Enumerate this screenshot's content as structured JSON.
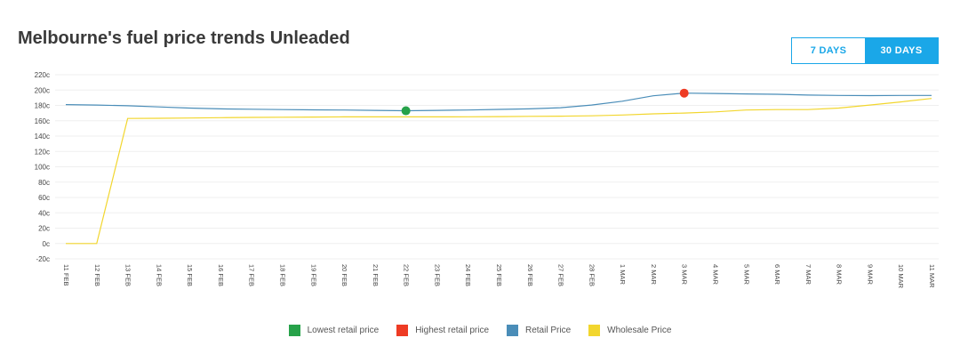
{
  "page": {
    "title": "Melbourne's fuel price trends Unleaded"
  },
  "toggle": {
    "seven_days": "7 DAYS",
    "thirty_days": "30 DAYS",
    "active": "30 DAYS"
  },
  "colors": {
    "retail": "#4a8db8",
    "wholesale": "#f2d62e",
    "lowest": "#27a24a",
    "highest": "#ee3b24",
    "accent": "#1aa7e8"
  },
  "legend": [
    {
      "label": "Lowest retail price",
      "color": "#27a24a"
    },
    {
      "label": "Highest retail price",
      "color": "#ee3b24"
    },
    {
      "label": "Retail Price",
      "color": "#4a8db8"
    },
    {
      "label": "Wholesale Price",
      "color": "#f2d62e"
    }
  ],
  "chart_data": {
    "type": "line",
    "title": "Melbourne's fuel price trends Unleaded",
    "xlabel": "",
    "ylabel": "",
    "ylim": [
      -20,
      220
    ],
    "yticks": [
      "-20c",
      "0c",
      "20c",
      "40c",
      "60c",
      "80c",
      "100c",
      "120c",
      "140c",
      "160c",
      "180c",
      "200c",
      "220c"
    ],
    "categories": [
      "11 FEB",
      "12 FEB",
      "13 FEB",
      "14 FEB",
      "15 FEB",
      "16 FEB",
      "17 FEB",
      "18 FEB",
      "19 FEB",
      "20 FEB",
      "21 FEB",
      "22 FEB",
      "23 FEB",
      "24 FEB",
      "25 FEB",
      "26 FEB",
      "27 FEB",
      "28 FEB",
      "1 MAR",
      "2 MAR",
      "3 MAR",
      "4 MAR",
      "5 MAR",
      "6 MAR",
      "7 MAR",
      "8 MAR",
      "9 MAR",
      "10 MAR",
      "11 MAR"
    ],
    "series": [
      {
        "name": "Retail Price",
        "values": [
          181,
          180.5,
          179.5,
          178,
          176.5,
          175.5,
          175,
          174.5,
          174.2,
          174,
          173.5,
          173,
          173.5,
          174,
          174.8,
          175.5,
          177,
          180.5,
          185.5,
          192.5,
          196,
          195.5,
          195,
          194.5,
          193.5,
          193,
          192.8,
          193,
          193
        ]
      },
      {
        "name": "Wholesale Price",
        "values": [
          0,
          0,
          163,
          163.2,
          163.5,
          164,
          164.3,
          164.6,
          164.8,
          165,
          165,
          165,
          165,
          165.2,
          165.4,
          165.7,
          166,
          166.4,
          167.5,
          169,
          170,
          171.5,
          174,
          174.5,
          174.5,
          176.5,
          180.5,
          184.5,
          189
        ]
      }
    ],
    "markers": [
      {
        "name": "Lowest retail price",
        "x": "22 FEB",
        "y": 173
      },
      {
        "name": "Highest retail price",
        "x": "3 MAR",
        "y": 196
      }
    ],
    "grid": true,
    "legend_position": "bottom-center"
  }
}
